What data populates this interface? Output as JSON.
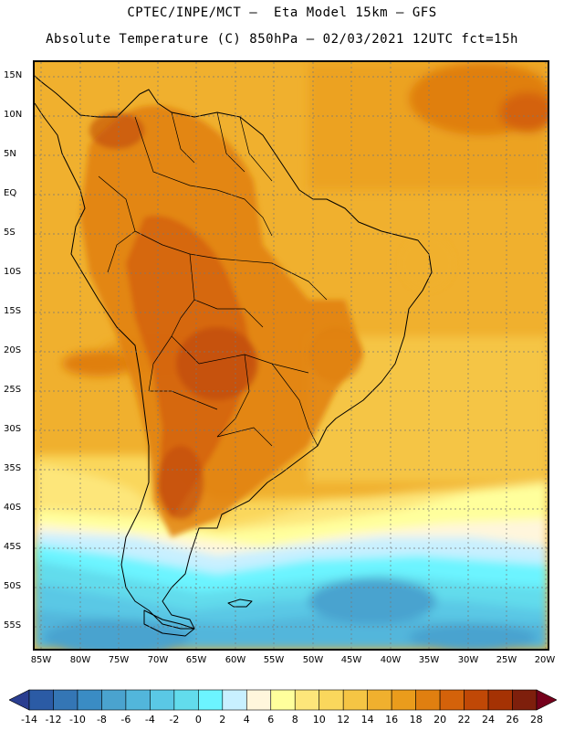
{
  "header": {
    "line1": "CPTEC/INPE/MCT –  Eta Model 15km – GFS",
    "line2": "Absolute Temperature (C) 850hPa – 02/03/2021 12UTC fct=15h"
  },
  "map": {
    "lat_labels": [
      "15N",
      "10N",
      "5N",
      "EQ",
      "5S",
      "10S",
      "15S",
      "20S",
      "25S",
      "30S",
      "35S",
      "40S",
      "45S",
      "50S",
      "55S"
    ],
    "lon_labels": [
      "85W",
      "80W",
      "75W",
      "70W",
      "65W",
      "60W",
      "55W",
      "50W",
      "45W",
      "40W",
      "35W",
      "30W",
      "25W",
      "20W"
    ],
    "lat_range": [
      17,
      -58
    ],
    "lon_range": [
      -86.2,
      -20
    ]
  },
  "colorbar": {
    "labels": [
      "-14",
      "-12",
      "-10",
      "-8",
      "-6",
      "-4",
      "-2",
      "0",
      "2",
      "4",
      "6",
      "8",
      "10",
      "12",
      "14",
      "16",
      "18",
      "20",
      "22",
      "24",
      "26",
      "28"
    ],
    "colors": [
      "#2a3e90",
      "#2b5ba5",
      "#3476b5",
      "#3a8cc4",
      "#4aa3cf",
      "#52b6db",
      "#5ac8e5",
      "#62dcec",
      "#6cf4ff",
      "#c8f0ff",
      "#fff6dc",
      "#ffff9c",
      "#fde67a",
      "#fad75c",
      "#f5c544",
      "#f0b02e",
      "#ea9c1c",
      "#e07f10",
      "#d4620a",
      "#c04806",
      "#a53204",
      "#7e1f0c",
      "#75001c"
    ]
  }
}
